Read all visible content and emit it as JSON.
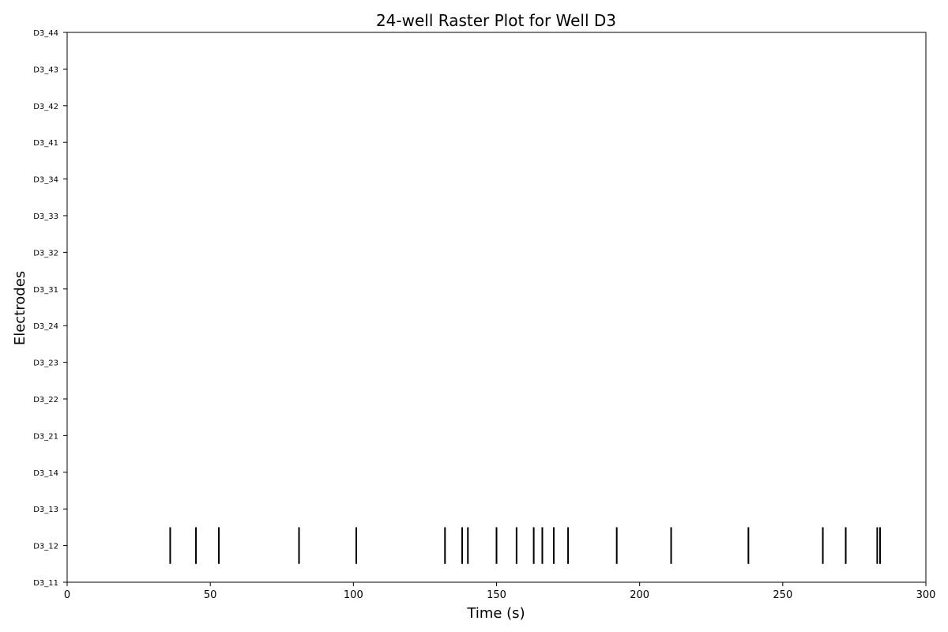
{
  "chart_data": {
    "type": "raster",
    "title": "24-well Raster Plot for Well D3",
    "xlabel": "Time (s)",
    "ylabel": "Electrodes",
    "xlim": [
      0,
      300
    ],
    "xticks": [
      0,
      50,
      100,
      150,
      200,
      250,
      300
    ],
    "electrodes": [
      "D3_11",
      "D3_12",
      "D3_13",
      "D3_14",
      "D3_21",
      "D3_22",
      "D3_23",
      "D3_24",
      "D3_31",
      "D3_32",
      "D3_33",
      "D3_34",
      "D3_41",
      "D3_42",
      "D3_43",
      "D3_44"
    ],
    "grid": false,
    "series": [
      {
        "electrode": "D3_12",
        "spike_times": [
          36,
          45,
          53,
          81,
          101,
          132,
          138,
          140,
          150,
          157,
          163,
          166,
          170,
          175,
          192,
          211,
          238,
          264,
          272,
          283,
          284
        ]
      }
    ],
    "colors": {
      "spike": "#000000",
      "axis": "#000000"
    }
  }
}
